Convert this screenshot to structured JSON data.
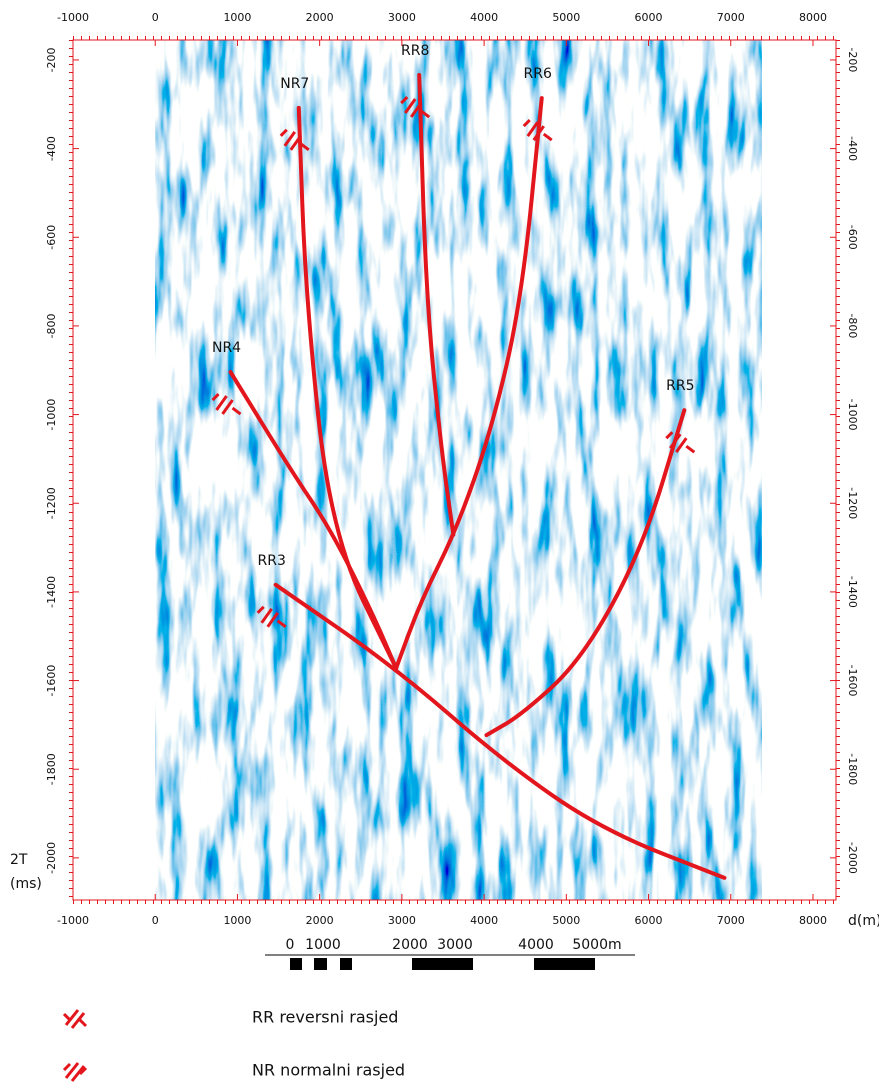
{
  "chart_data": {
    "type": "line",
    "x_label": "d(m)",
    "y_label": [
      "2T",
      "(ms)"
    ],
    "xlim": [
      -1000,
      8280
    ],
    "ylim": [
      -2095,
      -155
    ],
    "xticks": [
      -1000,
      0,
      1000,
      2000,
      3000,
      4000,
      5000,
      6000,
      7000,
      8000
    ],
    "yticks": [
      -200,
      -400,
      -600,
      -800,
      -1000,
      -1200,
      -1400,
      -1600,
      -1800,
      -2000
    ],
    "series": [
      {
        "name": "NR7",
        "color": "#e3161d",
        "x": [
          1746,
          1832,
          2137,
          2930
        ],
        "values": [
          -308,
          -741,
          -1271,
          -1572
        ]
      },
      {
        "name": "RR8",
        "color": "#e3161d",
        "x": [
          3211,
          3297,
          3480,
          3626
        ],
        "values": [
          -234,
          -741,
          -1080,
          -1271
        ]
      },
      {
        "name": "RR6",
        "color": "#e3161d",
        "x": [
          4701,
          4457,
          4090,
          3663,
          3236,
          2930
        ],
        "values": [
          -286,
          -741,
          -1035,
          -1260,
          -1418,
          -1572
        ]
      },
      {
        "name": "NR4",
        "color": "#e3161d",
        "x": [
          916,
          1648,
          2137,
          2625,
          2930
        ],
        "values": [
          -904,
          -1125,
          -1260,
          -1441,
          -1572
        ]
      },
      {
        "name": "RR5",
        "color": "#e3161d",
        "x": [
          6435,
          5922,
          5189,
          4457,
          4029
        ],
        "values": [
          -990,
          -1305,
          -1553,
          -1677,
          -1723
        ]
      },
      {
        "name": "RR3",
        "color": "#e3161d",
        "x": [
          1465,
          2930,
          4212,
          5433,
          6923
        ],
        "values": [
          -1384,
          -1572,
          -1779,
          -1937,
          -2045
        ]
      }
    ],
    "scale_bar": [
      "0",
      "1000",
      "2000",
      "3000",
      "4000",
      "5000m"
    ],
    "legend": [
      "RR reversni rasjed",
      "NR normalni rasjed"
    ]
  }
}
